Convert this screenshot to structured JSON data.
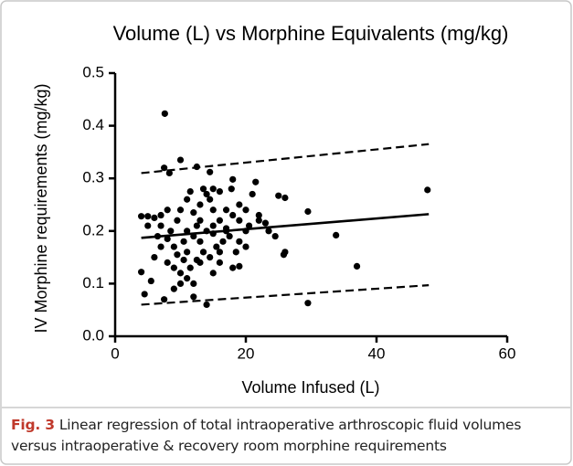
{
  "chart_data": {
    "type": "scatter",
    "title": "Volume (L) vs Morphine Equivalents (mg/kg)",
    "xlabel": "Volume Infused (L)",
    "ylabel": "IV Morphine requirements (mg/kg)",
    "xlim": [
      0,
      60
    ],
    "xticks": [
      0,
      20,
      40,
      60
    ],
    "ylim": [
      0,
      0.5
    ],
    "yticks": [
      {
        "value": 0,
        "label": "0.0"
      },
      0.1,
      0.2,
      0.3,
      0.4,
      0.5
    ],
    "series": [
      {
        "type": "scatter",
        "color": "#000000",
        "x": [
          7.6,
          7.5,
          8.3,
          10,
          12.5,
          14.5,
          21.5,
          18,
          29.5,
          33.8,
          37,
          29.5,
          47.8,
          25,
          26,
          26,
          25.8,
          24.5,
          22,
          23,
          21,
          20,
          19,
          18,
          19,
          17,
          16,
          15,
          14,
          12,
          9,
          7.5,
          4.5,
          5.5,
          4,
          4,
          5,
          6,
          7,
          6.5,
          7,
          6,
          8,
          9,
          10,
          11,
          10,
          12,
          13,
          11,
          9,
          8.5,
          9.5,
          10,
          8,
          11,
          11.5,
          13,
          13.5,
          14,
          15,
          14.5,
          16,
          15,
          13,
          12.5,
          12,
          11,
          10.5,
          13,
          14,
          15,
          16,
          17,
          18,
          19,
          20,
          17.5,
          16.5,
          15.5,
          14.5,
          13.5,
          12.5,
          11.5,
          10.5,
          9.5,
          8,
          7,
          5,
          20.5,
          18.5,
          16,
          22,
          23.5,
          20,
          17,
          19,
          17.8,
          12,
          15
        ],
        "values": [
          0.423,
          0.32,
          0.31,
          0.335,
          0.322,
          0.312,
          0.293,
          0.298,
          0.237,
          0.192,
          0.133,
          0.063,
          0.278,
          0.267,
          0.263,
          0.16,
          0.155,
          0.19,
          0.23,
          0.215,
          0.27,
          0.2,
          0.18,
          0.13,
          0.133,
          0.2,
          0.16,
          0.12,
          0.06,
          0.075,
          0.09,
          0.07,
          0.08,
          0.105,
          0.122,
          0.228,
          0.228,
          0.225,
          0.23,
          0.19,
          0.17,
          0.15,
          0.14,
          0.13,
          0.12,
          0.11,
          0.1,
          0.1,
          0.14,
          0.16,
          0.17,
          0.2,
          0.22,
          0.24,
          0.24,
          0.26,
          0.275,
          0.25,
          0.28,
          0.27,
          0.28,
          0.26,
          0.275,
          0.24,
          0.22,
          0.21,
          0.19,
          0.2,
          0.18,
          0.18,
          0.2,
          0.21,
          0.22,
          0.24,
          0.23,
          0.22,
          0.24,
          0.19,
          0.18,
          0.17,
          0.15,
          0.16,
          0.145,
          0.13,
          0.145,
          0.155,
          0.185,
          0.21,
          0.21,
          0.21,
          0.16,
          0.14,
          0.22,
          0.2,
          0.17,
          0.205,
          0.25,
          0.28,
          0.235,
          0.195
        ]
      },
      {
        "type": "line",
        "color": "#000000",
        "x": [
          4,
          48
        ],
        "values": [
          0.187,
          0.232
        ]
      },
      {
        "type": "line",
        "color": "#000000",
        "dashed": true,
        "x": [
          4,
          48
        ],
        "values": [
          0.31,
          0.365
        ]
      },
      {
        "type": "line",
        "color": "#000000",
        "dashed": true,
        "x": [
          4,
          48
        ],
        "values": [
          0.06,
          0.097
        ]
      }
    ]
  },
  "caption": {
    "label": "Fig. 3",
    "text": "Linear regression of total intraoperative arthroscopic fluid volumes versus intraoperative & recovery room morphine requirements"
  }
}
